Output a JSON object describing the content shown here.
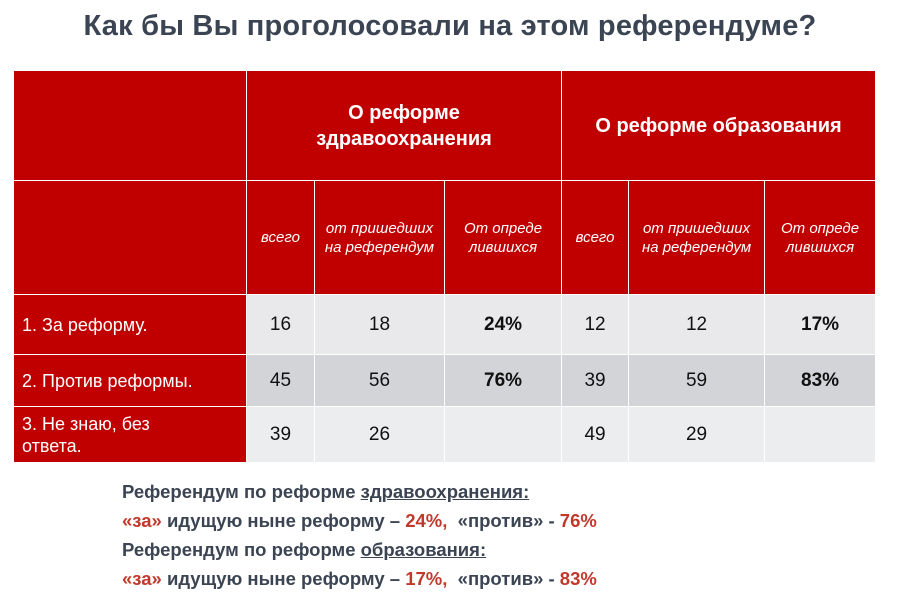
{
  "title": "Как бы Вы проголосовали на этом референдуме?",
  "table": {
    "groups": [
      "О реформе здравоохранения",
      "О реформе образования"
    ],
    "subheaders": [
      "всего",
      "от пришедших на референдум",
      "От определившихся"
    ],
    "rows": [
      {
        "label": "1. За реформу.",
        "values": [
          "16",
          "18",
          "24%",
          "12",
          "12",
          "17%"
        ]
      },
      {
        "label": "2. Против реформы.",
        "values": [
          "45",
          "56",
          "76%",
          "39",
          "59",
          "83%"
        ]
      },
      {
        "label": "3. Не знаю, без ответа.",
        "values": [
          "39",
          "26",
          "",
          "49",
          "29",
          ""
        ]
      }
    ]
  },
  "summary": {
    "line1_prefix": "Референдум по реформе ",
    "line1_topic": "здравоохранения:",
    "line2_for": "«за»",
    "line2_mid": " идущую ныне реформу – ",
    "line2_for_pct": "24%,",
    "line2_against": "  «против» - ",
    "line2_against_pct": "76%",
    "line3_prefix": "Референдум по реформе ",
    "line3_topic": "образования:",
    "line4_for": "«за»",
    "line4_mid": " идущую ныне реформу – ",
    "line4_for_pct": "17%,",
    "line4_against": "  «против» - ",
    "line4_against_pct": "83%"
  },
  "colors": {
    "header_red": "#c00000",
    "accent": "#c0392b",
    "title": "#3b4452"
  }
}
